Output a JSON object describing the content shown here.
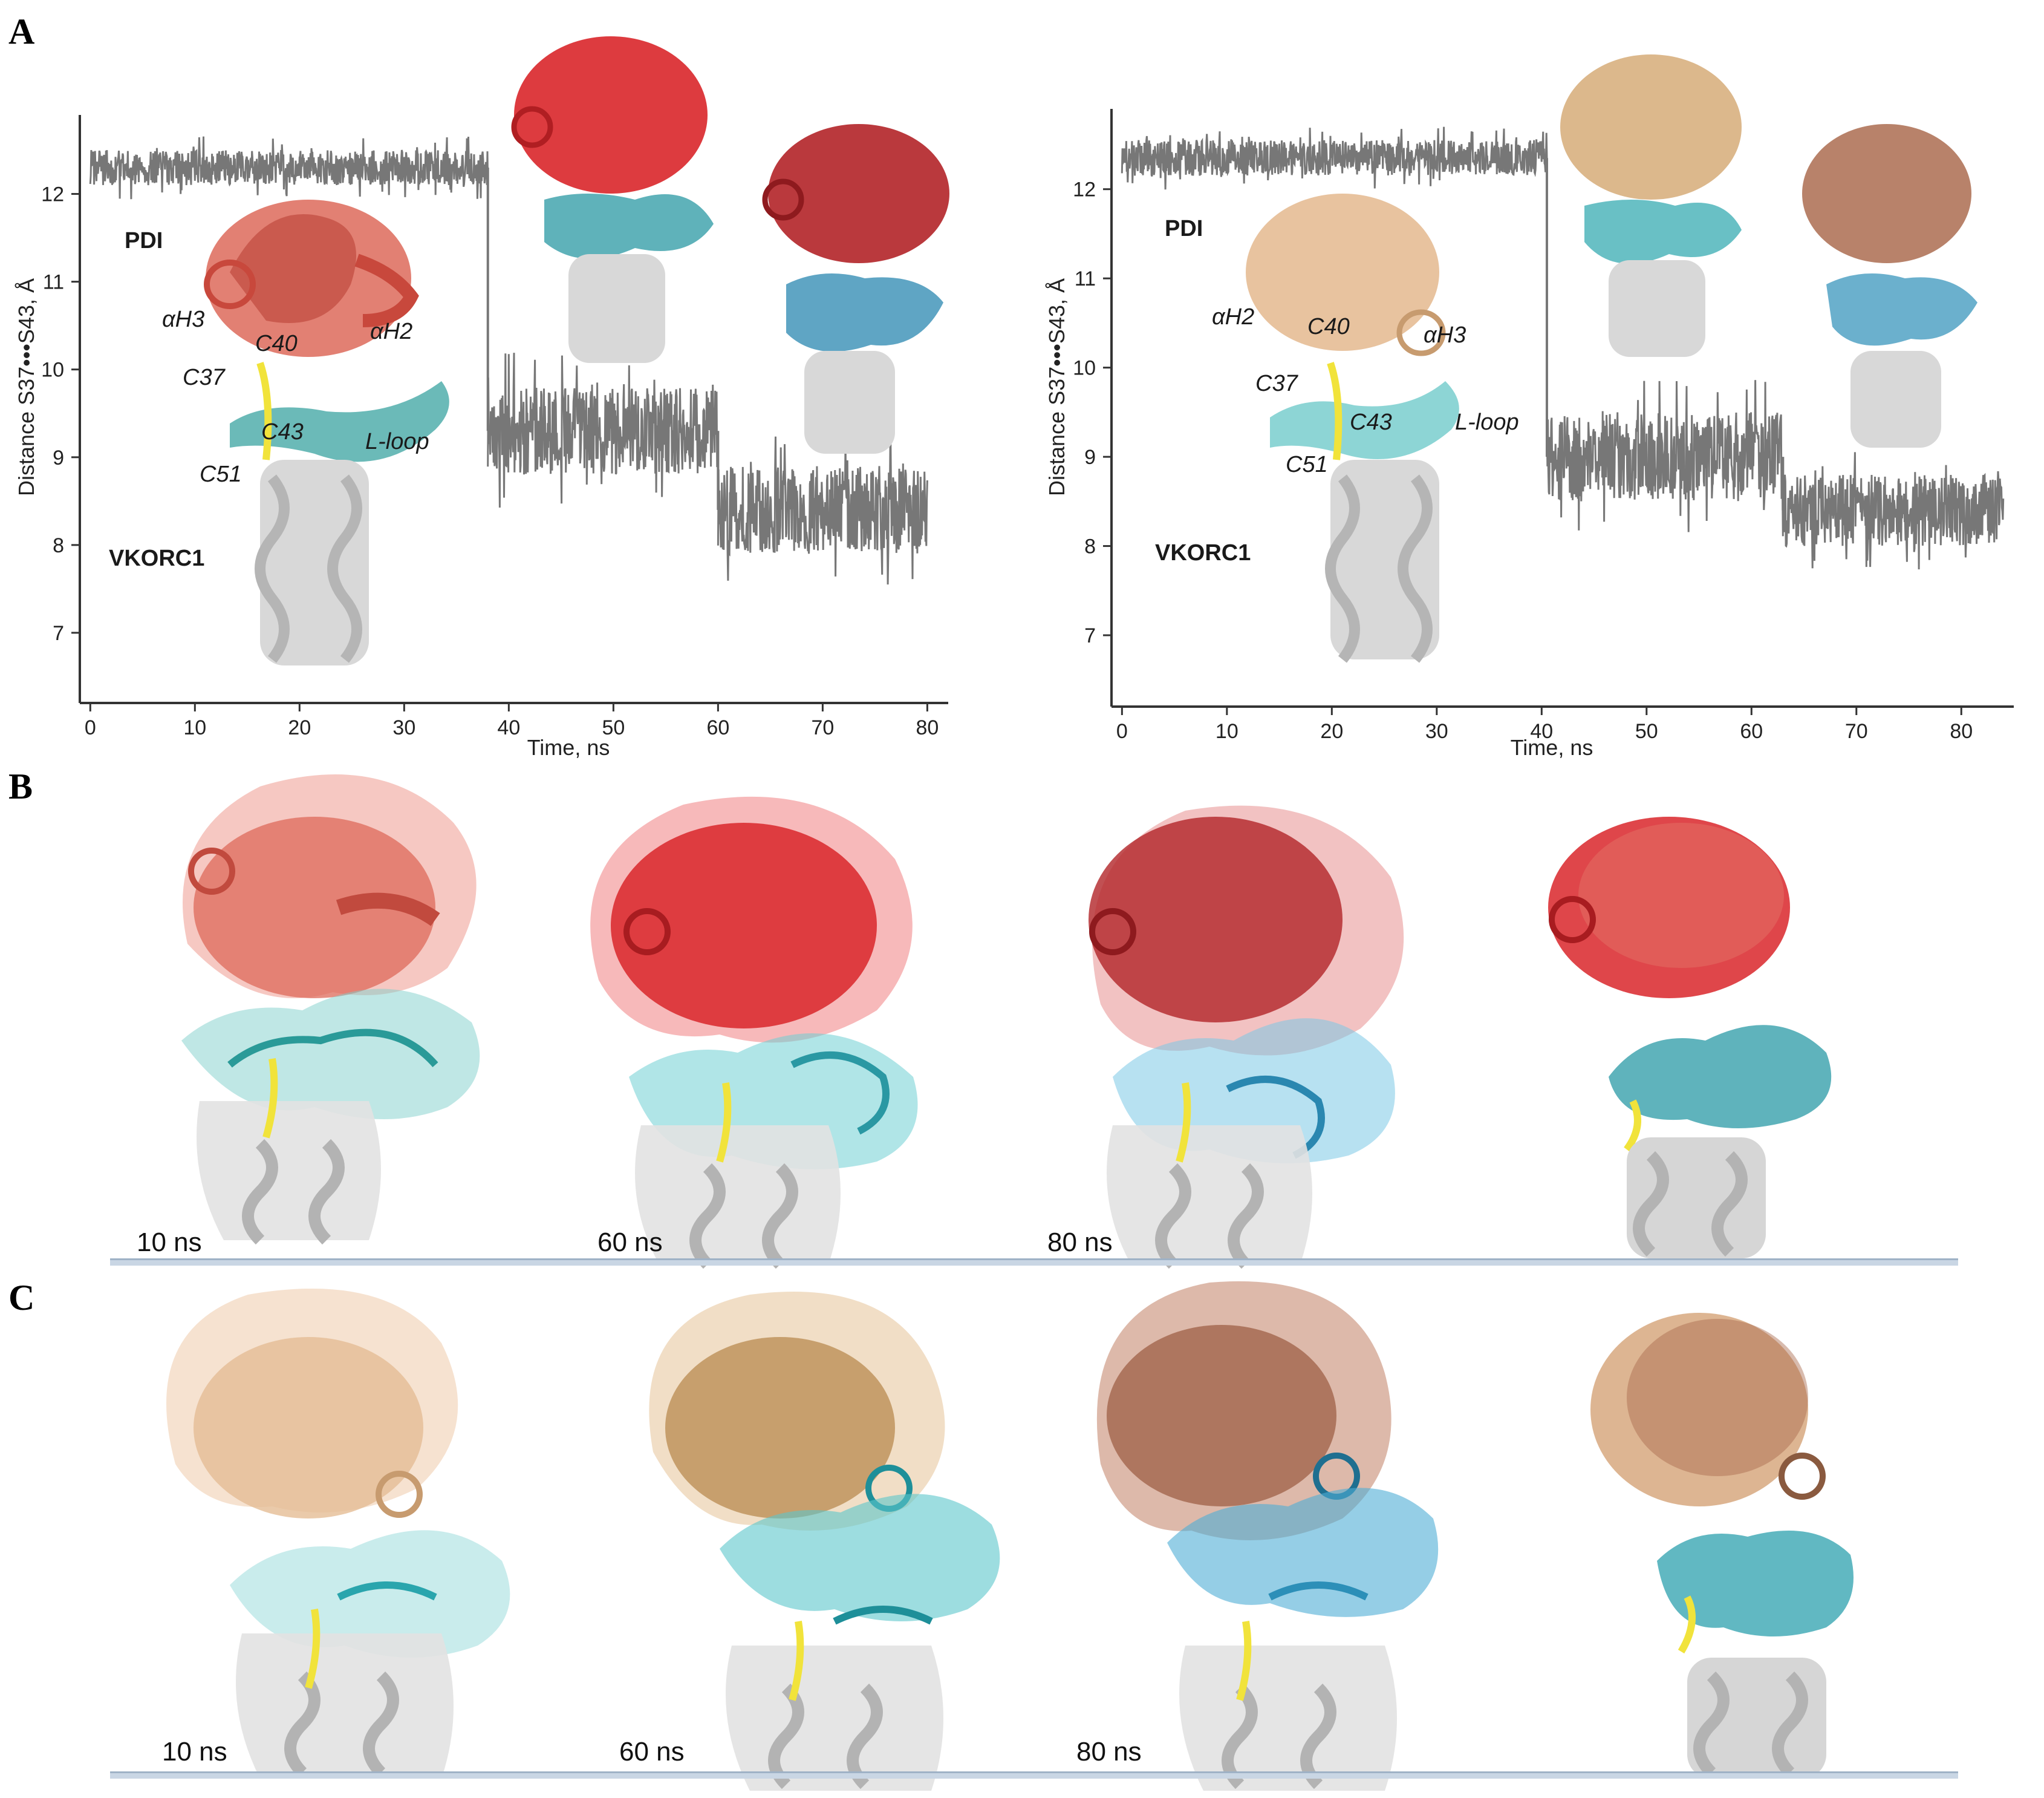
{
  "panels": {
    "a": "A",
    "b": "B",
    "c": "C"
  },
  "chart_data": [
    {
      "type": "line",
      "title": "",
      "xlabel": "Time, ns",
      "ylabel": "Distance S37•••S43, Å",
      "xlim": [
        -1,
        82
      ],
      "ylim": [
        6.2,
        12.9
      ],
      "xticks": [
        0,
        10,
        20,
        30,
        40,
        50,
        60,
        70,
        80
      ],
      "yticks": [
        7,
        8,
        9,
        10,
        11,
        12
      ],
      "series_color": "#777777",
      "segments": [
        {
          "x_start": 0,
          "x_end": 38,
          "mean": 12.3,
          "fluctuation": 0.4
        },
        {
          "x_start": 38,
          "x_end": 60,
          "mean": 9.3,
          "fluctuation": 1.0
        },
        {
          "x_start": 60,
          "x_end": 80,
          "mean": 8.4,
          "fluctuation": 1.0
        }
      ],
      "annotations": {
        "pdi": "PDI",
        "vkorc1": "VKORC1",
        "ah3": "αH3",
        "ah2": "αH2",
        "c40": "C40",
        "c37": "C37",
        "c43": "C43",
        "c51": "C51",
        "lloop": "L-loop"
      }
    },
    {
      "type": "line",
      "title": "",
      "xlabel": "Time, ns",
      "ylabel": "Distance S37•••S43, Å",
      "xlim": [
        -1,
        85
      ],
      "ylim": [
        6.2,
        12.9
      ],
      "xticks": [
        0,
        10,
        20,
        30,
        40,
        50,
        60,
        70,
        80
      ],
      "yticks": [
        7,
        8,
        9,
        10,
        11,
        12
      ],
      "series_color": "#777777",
      "segments": [
        {
          "x_start": 0,
          "x_end": 40.5,
          "mean": 12.35,
          "fluctuation": 0.4
        },
        {
          "x_start": 40.5,
          "x_end": 63,
          "mean": 9.0,
          "fluctuation": 1.0
        },
        {
          "x_start": 63,
          "x_end": 84,
          "mean": 8.4,
          "fluctuation": 0.8
        }
      ],
      "annotations": {
        "pdi": "PDI",
        "vkorc1": "VKORC1",
        "ah2": "αH2",
        "ah3": "αH3",
        "c40": "C40",
        "c37": "C37",
        "c43": "C43",
        "c51": "C51",
        "lloop": "L-loop"
      }
    }
  ],
  "snapshots": {
    "b": [
      "10 ns",
      "60 ns",
      "80 ns"
    ],
    "c": [
      "10 ns",
      "60 ns",
      "80 ns"
    ]
  },
  "colors": {
    "pdi_b": [
      "#dd6a5a",
      "#d9262a",
      "#b22428"
    ],
    "pdi_c": [
      "#e5bd95",
      "#b8894f",
      "#9a5a3f"
    ],
    "vkorc1_loop_b": [
      "#3aa3a0",
      "#2a98a3",
      "#2a87b0"
    ],
    "vkorc1_loop_c": [
      "#5cc3c3",
      "#2aa5ad",
      "#2c8fb8"
    ],
    "membrane": "#d8d8d8",
    "disulfide": "#f1e33b"
  }
}
